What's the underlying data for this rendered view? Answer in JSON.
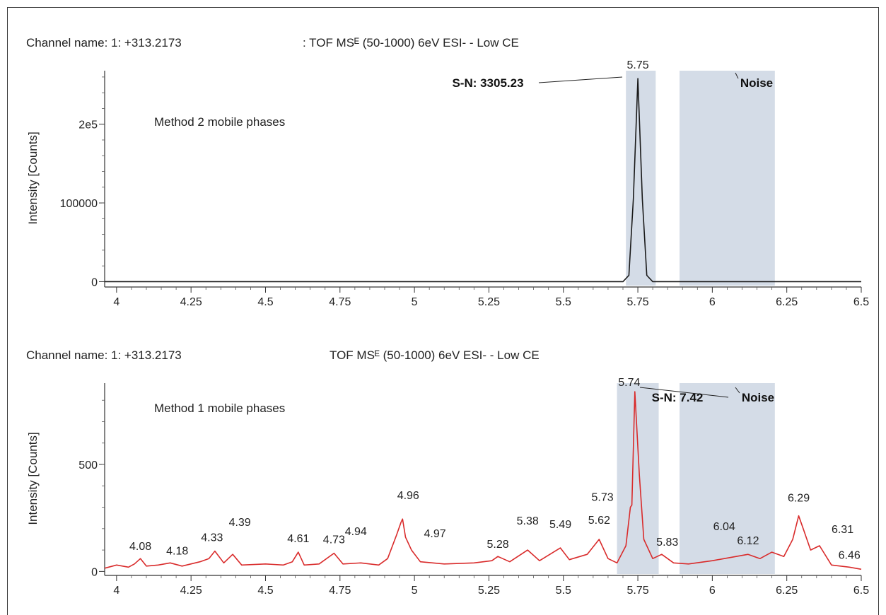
{
  "chart_data": [
    {
      "type": "line",
      "channel_label": "Channel name: 1: +313.2173",
      "function_label": ": TOF MSᴱ (50-1000) 6eV ESI- - Low CE",
      "ylabel": "Intensity [Counts]",
      "xlim": [
        3.96,
        6.5
      ],
      "ylim": [
        -5000,
        268000
      ],
      "x_ticks": [
        4,
        4.25,
        4.5,
        4.75,
        5,
        5.25,
        5.5,
        5.75,
        6,
        6.25,
        6.5
      ],
      "x_tick_labels": [
        "4",
        "4.25",
        "4.5",
        "4.75",
        "5",
        "5.25",
        "5.5",
        "5.75",
        "6",
        "6.25",
        "6.5"
      ],
      "y_ticks": [
        0,
        100000,
        200000
      ],
      "y_tick_labels": [
        "0",
        "100000",
        "2e5"
      ],
      "annotation": "Method 2 mobile phases",
      "color": "#1a1a1a",
      "shaded_regions": [
        [
          5.71,
          5.81
        ],
        [
          5.89,
          6.21
        ]
      ],
      "noise_label": "Noise",
      "sn_label": "S-N: 3305.23",
      "peaks": [
        {
          "x": 5.75,
          "y": 258000,
          "label": "5.75"
        }
      ],
      "series": [
        {
          "x": [
            3.96,
            5.7,
            5.72,
            5.735,
            5.75,
            5.765,
            5.78,
            5.8,
            6.5
          ],
          "y": [
            0,
            0,
            8000,
            105000,
            258000,
            105000,
            8000,
            0,
            0
          ]
        }
      ]
    },
    {
      "type": "line",
      "channel_label": "Channel name: 1: +313.2173",
      "function_label": "TOF MSᴱ (50-1000) 6eV ESI- - Low CE",
      "ylabel": "Intensity [Counts]",
      "xlim": [
        3.96,
        6.5
      ],
      "ylim": [
        -12,
        880
      ],
      "x_ticks": [
        4,
        4.25,
        4.5,
        4.75,
        5,
        5.25,
        5.5,
        5.75,
        6,
        6.25,
        6.5
      ],
      "x_tick_labels": [
        "4",
        "4.25",
        "4.5",
        "4.75",
        "5",
        "5.25",
        "5.5",
        "5.75",
        "6",
        "6.25",
        "6.5"
      ],
      "y_ticks": [
        0,
        500
      ],
      "y_tick_labels": [
        "0",
        "500"
      ],
      "annotation": "Method 1 mobile phases",
      "color": "#d92b2b",
      "shaded_regions": [
        [
          5.68,
          5.82
        ],
        [
          5.89,
          6.21
        ]
      ],
      "noise_label": "Noise",
      "sn_label": "S-N: 7.42",
      "peaks": [
        {
          "x": 4.08,
          "y": 60,
          "label": "4.08"
        },
        {
          "x": 4.18,
          "y": 40,
          "label": "4.18"
        },
        {
          "x": 4.33,
          "y": 95,
          "label": "4.33"
        },
        {
          "x": 4.39,
          "y": 80,
          "label": "4.39"
        },
        {
          "x": 4.61,
          "y": 90,
          "label": "4.61"
        },
        {
          "x": 4.73,
          "y": 85,
          "label": "4.73"
        },
        {
          "x": 4.94,
          "y": 170,
          "label": "4.94"
        },
        {
          "x": 4.96,
          "y": 245,
          "label": "4.96"
        },
        {
          "x": 4.97,
          "y": 160,
          "label": "4.97"
        },
        {
          "x": 5.28,
          "y": 70,
          "label": "5.28"
        },
        {
          "x": 5.38,
          "y": 100,
          "label": "5.38"
        },
        {
          "x": 5.49,
          "y": 110,
          "label": "5.49"
        },
        {
          "x": 5.62,
          "y": 150,
          "label": "5.62"
        },
        {
          "x": 5.73,
          "y": 310,
          "label": "5.73"
        },
        {
          "x": 5.74,
          "y": 840,
          "label": "5.74"
        },
        {
          "x": 5.83,
          "y": 80,
          "label": "5.83"
        },
        {
          "x": 6.04,
          "y": 60,
          "label": "6.04"
        },
        {
          "x": 6.12,
          "y": 80,
          "label": "6.12"
        },
        {
          "x": 6.29,
          "y": 260,
          "label": "6.29"
        },
        {
          "x": 6.31,
          "y": 180,
          "label": "6.31"
        },
        {
          "x": 6.46,
          "y": 20,
          "label": "6.46"
        }
      ],
      "series": [
        {
          "x": [
            3.96,
            4.0,
            4.04,
            4.06,
            4.08,
            4.1,
            4.14,
            4.18,
            4.22,
            4.28,
            4.31,
            4.33,
            4.36,
            4.39,
            4.42,
            4.5,
            4.56,
            4.59,
            4.61,
            4.63,
            4.68,
            4.73,
            4.76,
            4.82,
            4.88,
            4.91,
            4.94,
            4.955,
            4.96,
            4.97,
            4.99,
            5.02,
            5.1,
            5.2,
            5.26,
            5.28,
            5.32,
            5.38,
            5.42,
            5.49,
            5.52,
            5.58,
            5.62,
            5.65,
            5.68,
            5.71,
            5.725,
            5.73,
            5.74,
            5.755,
            5.77,
            5.8,
            5.83,
            5.87,
            5.92,
            6.0,
            6.04,
            6.08,
            6.12,
            6.16,
            6.2,
            6.24,
            6.27,
            6.29,
            6.305,
            6.31,
            6.33,
            6.36,
            6.4,
            6.46,
            6.5
          ],
          "y": [
            15,
            30,
            20,
            35,
            60,
            25,
            30,
            40,
            25,
            45,
            60,
            95,
            40,
            80,
            30,
            35,
            30,
            45,
            90,
            30,
            35,
            85,
            35,
            40,
            30,
            60,
            170,
            230,
            245,
            160,
            100,
            45,
            35,
            40,
            50,
            70,
            45,
            100,
            50,
            110,
            55,
            80,
            150,
            60,
            40,
            120,
            300,
            310,
            840,
            450,
            150,
            60,
            80,
            40,
            35,
            50,
            60,
            70,
            80,
            60,
            90,
            70,
            150,
            260,
            200,
            180,
            100,
            120,
            30,
            20,
            10
          ]
        }
      ]
    }
  ]
}
